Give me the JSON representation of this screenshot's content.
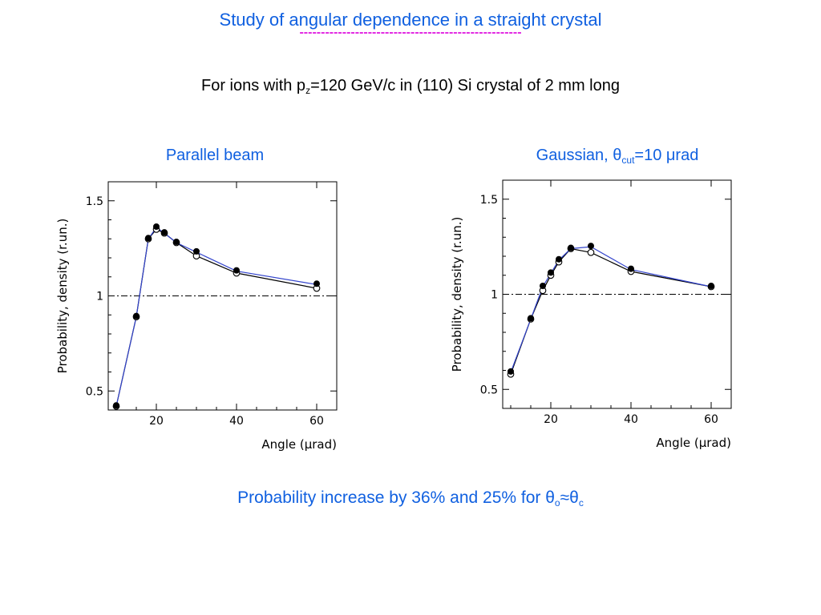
{
  "header": {
    "title": "Study of angular dependence in a straight crystal",
    "underline": "----------------------------------------------------",
    "subtitle_pre": "For ions with p",
    "subtitle_sub": "z",
    "subtitle_post": "=120 GeV/c in (110) Si crystal of 2 mm long"
  },
  "footer": {
    "pre": "Probability increase by 36% and 25% for θ",
    "sub1": "o",
    "mid": "≈θ",
    "sub2": "c"
  },
  "colors": {
    "accent_blue": "#1060e0",
    "magenta": "#e020e0",
    "series_blue": "#3344cc",
    "series_black": "#000000"
  },
  "chart_data": [
    {
      "type": "line",
      "title": "Parallel beam",
      "xlabel": "Angle  (μrad)",
      "ylabel": "Probability, density  (r.un.)",
      "xlim": [
        8,
        65
      ],
      "ylim": [
        0.4,
        1.6
      ],
      "xticks": [
        20,
        40,
        60
      ],
      "yticks": [
        0.5,
        1,
        1.5
      ],
      "ytick_labels": [
        "0.5",
        "1",
        "1.5"
      ],
      "reference_line_y": 1,
      "series": [
        {
          "marker": "filled",
          "color": "#3344cc",
          "x": [
            10,
            15,
            18,
            20,
            22,
            25,
            30,
            40,
            60
          ],
          "y": [
            0.42,
            0.89,
            1.3,
            1.36,
            1.33,
            1.28,
            1.23,
            1.13,
            1.06
          ]
        },
        {
          "marker": "open",
          "color": "#000000",
          "x": [
            10,
            15,
            18,
            20,
            22,
            25,
            30,
            40,
            60
          ],
          "y": [
            0.42,
            0.89,
            1.3,
            1.35,
            1.33,
            1.28,
            1.21,
            1.12,
            1.04
          ]
        }
      ]
    },
    {
      "type": "line",
      "title_pre": "Gaussian, θ",
      "title_sub": "cut",
      "title_post": "=10 μrad",
      "xlabel": "Angle  (μrad)",
      "ylabel": "Probability, density  (r.un.)",
      "xlim": [
        8,
        65
      ],
      "ylim": [
        0.4,
        1.6
      ],
      "xticks": [
        20,
        40,
        60
      ],
      "yticks": [
        0.5,
        1,
        1.5
      ],
      "ytick_labels": [
        "0.5",
        "1",
        "1.5"
      ],
      "reference_line_y": 1,
      "series": [
        {
          "marker": "filled",
          "color": "#3344cc",
          "x": [
            10,
            15,
            18,
            20,
            22,
            25,
            30,
            40,
            60
          ],
          "y": [
            0.59,
            0.87,
            1.04,
            1.11,
            1.18,
            1.24,
            1.25,
            1.13,
            1.04
          ]
        },
        {
          "marker": "open",
          "color": "#000000",
          "x": [
            10,
            15,
            18,
            20,
            22,
            25,
            30,
            40,
            60
          ],
          "y": [
            0.58,
            0.87,
            1.02,
            1.1,
            1.17,
            1.24,
            1.22,
            1.12,
            1.04
          ]
        }
      ]
    }
  ]
}
